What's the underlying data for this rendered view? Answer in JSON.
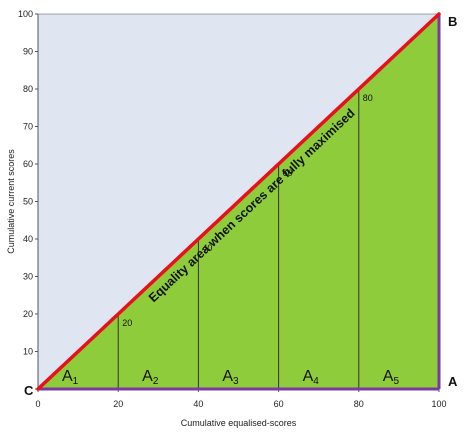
{
  "chart_data": {
    "type": "area",
    "xlabel": "Cumulative equalised-scores",
    "ylabel": "Cumulative current scores",
    "xlim": [
      0,
      100
    ],
    "ylim": [
      0,
      100
    ],
    "x_ticks": [
      0,
      20,
      40,
      60,
      80,
      100
    ],
    "y_ticks": [
      0,
      10,
      20,
      30,
      40,
      50,
      60,
      70,
      80,
      90,
      100
    ],
    "grid": false,
    "series": [
      {
        "name": "",
        "x": [
          0,
          100
        ],
        "y": [
          0,
          100
        ],
        "color": "#e8101a"
      }
    ],
    "markers": [
      {
        "x": 20,
        "y": 20,
        "label": "20"
      },
      {
        "x": 40,
        "y": 40,
        "label": "40"
      },
      {
        "x": 60,
        "y": 60,
        "label": "60"
      },
      {
        "x": 80,
        "y": 80,
        "label": "80"
      }
    ],
    "segments": [
      {
        "base": "A",
        "sub": "1",
        "from": 0,
        "to": 20
      },
      {
        "base": "A",
        "sub": "2",
        "from": 20,
        "to": 40
      },
      {
        "base": "A",
        "sub": "3",
        "from": 40,
        "to": 60
      },
      {
        "base": "A",
        "sub": "4",
        "from": 60,
        "to": 80
      },
      {
        "base": "A",
        "sub": "5",
        "from": 80,
        "to": 100
      }
    ],
    "annotation": "Equality area when scores are fully maximised",
    "corner_labels": {
      "origin": "C",
      "right": "A",
      "top": "B"
    },
    "colors": {
      "upper_fill": "#dfe6f2",
      "lower_fill": "#8fcc3b",
      "diagonal": "#e8101a",
      "right_axis": "#7b3aa0",
      "bottom_axis": "#7b3aa0",
      "divider": "#333333",
      "axis": "#555555"
    }
  }
}
